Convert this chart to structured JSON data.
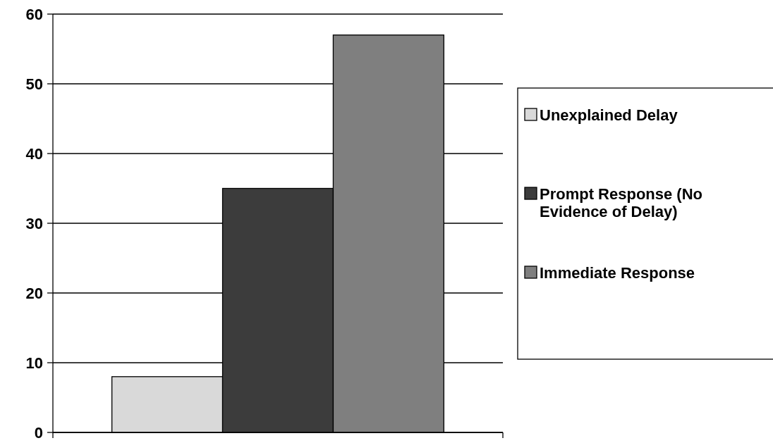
{
  "chart_data": {
    "type": "bar",
    "categories": [
      null
    ],
    "series": [
      {
        "name": "Unexplained Delay",
        "color": "#d9d9d9",
        "values": [
          8
        ]
      },
      {
        "name": "Prompt Response (No Evidence of Delay)",
        "color": "#3c3c3c",
        "values": [
          35
        ]
      },
      {
        "name": "Immediate Response",
        "color": "#7f7f7f",
        "values": [
          57
        ]
      }
    ],
    "ylim": [
      0,
      60
    ],
    "yticks": [
      0,
      10,
      20,
      30,
      40,
      50,
      60
    ],
    "grid": "y",
    "legend": "right"
  }
}
